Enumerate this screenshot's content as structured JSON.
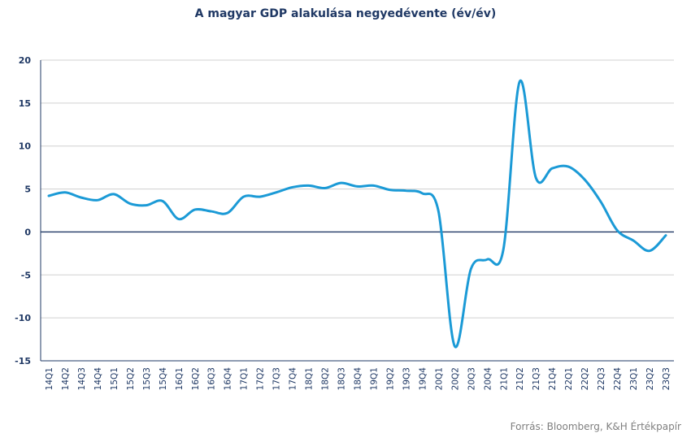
{
  "chart_data": {
    "type": "line",
    "title": "A magyar GDP alakulása negyedévente  (év/év)",
    "xlabel": "",
    "ylabel": "",
    "ylim": [
      -15,
      20
    ],
    "yticks": [
      20,
      15,
      10,
      5,
      0,
      -5,
      -10,
      -15
    ],
    "grid": true,
    "legend": "none",
    "categories": [
      "14Q1",
      "14Q2",
      "14Q3",
      "14Q4",
      "15Q1",
      "15Q2",
      "15Q3",
      "15Q4",
      "16Q1",
      "16Q2",
      "16Q3",
      "16Q4",
      "17Q1",
      "17Q2",
      "17Q3",
      "17Q4",
      "18Q1",
      "18Q2",
      "18Q3",
      "18Q4",
      "19Q1",
      "19Q2",
      "19Q3",
      "19Q4",
      "20Q1",
      "20Q2",
      "20Q3",
      "20Q4",
      "21Q1",
      "21Q2",
      "21Q3",
      "21Q4",
      "22Q1",
      "22Q2",
      "22Q3",
      "22Q4",
      "23Q1",
      "23Q2",
      "23Q3"
    ],
    "series": [
      {
        "color": "#1b9ad6",
        "values": [
          4.2,
          4.6,
          4.0,
          3.7,
          4.4,
          3.3,
          3.1,
          3.6,
          1.5,
          2.6,
          2.4,
          2.2,
          4.1,
          4.1,
          4.6,
          5.2,
          5.4,
          5.1,
          5.7,
          5.3,
          5.4,
          4.9,
          4.8,
          4.5,
          2.4,
          -13.3,
          -4.3,
          -3.2,
          -2.0,
          17.5,
          6.3,
          7.4,
          7.6,
          6.1,
          3.5,
          0.2,
          -1.0,
          -2.2,
          -0.4
        ]
      }
    ]
  },
  "source": "Forrás: Bloomberg,  K&H Értékpapír"
}
